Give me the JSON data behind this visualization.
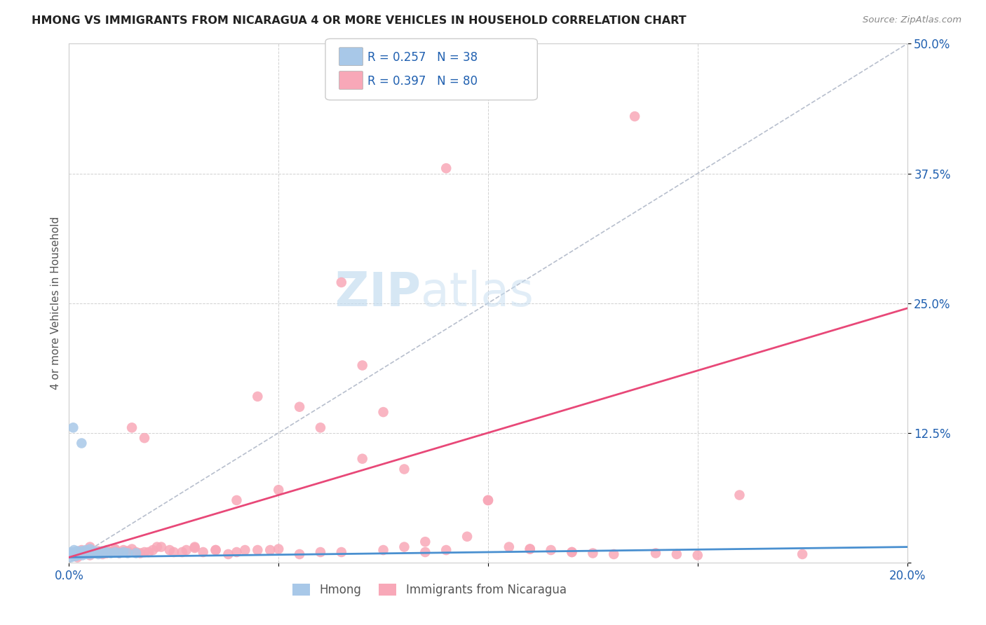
{
  "title": "HMONG VS IMMIGRANTS FROM NICARAGUA 4 OR MORE VEHICLES IN HOUSEHOLD CORRELATION CHART",
  "source": "Source: ZipAtlas.com",
  "ylabel": "4 or more Vehicles in Household",
  "xlim": [
    0.0,
    0.2
  ],
  "ylim": [
    0.0,
    0.5
  ],
  "xticks": [
    0.0,
    0.05,
    0.1,
    0.15,
    0.2
  ],
  "xticklabels": [
    "0.0%",
    "",
    "",
    "",
    "20.0%"
  ],
  "yticks": [
    0.0,
    0.125,
    0.25,
    0.375,
    0.5
  ],
  "yticklabels": [
    "",
    "12.5%",
    "25.0%",
    "37.5%",
    "50.0%"
  ],
  "hmong_R": 0.257,
  "hmong_N": 38,
  "nicaragua_R": 0.397,
  "nicaragua_N": 80,
  "hmong_color": "#a8c8e8",
  "nicaragua_color": "#f8a8b8",
  "hmong_line_color": "#4a90d0",
  "nicaragua_line_color": "#e84878",
  "diagonal_color": "#b0b8c8",
  "legend_text_color": "#2060b0",
  "background_color": "#ffffff",
  "watermark_zip": "ZIP",
  "watermark_atlas": "atlas",
  "hmong_x": [
    0.0005,
    0.0005,
    0.0008,
    0.001,
    0.001,
    0.0012,
    0.0012,
    0.0015,
    0.0015,
    0.0018,
    0.002,
    0.002,
    0.0022,
    0.0025,
    0.003,
    0.003,
    0.003,
    0.0032,
    0.0035,
    0.004,
    0.004,
    0.0042,
    0.005,
    0.005,
    0.005,
    0.006,
    0.006,
    0.007,
    0.007,
    0.008,
    0.008,
    0.009,
    0.01,
    0.011,
    0.012,
    0.013,
    0.014,
    0.016
  ],
  "hmong_y": [
    0.005,
    0.01,
    0.007,
    0.009,
    0.13,
    0.008,
    0.012,
    0.006,
    0.01,
    0.008,
    0.007,
    0.011,
    0.009,
    0.008,
    0.009,
    0.011,
    0.115,
    0.007,
    0.01,
    0.008,
    0.012,
    0.009,
    0.008,
    0.01,
    0.013,
    0.009,
    0.011,
    0.008,
    0.01,
    0.009,
    0.011,
    0.01,
    0.009,
    0.01,
    0.009,
    0.01,
    0.009,
    0.009
  ],
  "nicaragua_x": [
    0.002,
    0.003,
    0.004,
    0.005,
    0.006,
    0.007,
    0.008,
    0.009,
    0.01,
    0.011,
    0.012,
    0.013,
    0.014,
    0.015,
    0.016,
    0.017,
    0.018,
    0.019,
    0.02,
    0.022,
    0.025,
    0.028,
    0.03,
    0.032,
    0.035,
    0.038,
    0.04,
    0.042,
    0.045,
    0.048,
    0.05,
    0.055,
    0.06,
    0.065,
    0.07,
    0.075,
    0.08,
    0.085,
    0.09,
    0.095,
    0.1,
    0.105,
    0.11,
    0.115,
    0.12,
    0.125,
    0.13,
    0.135,
    0.14,
    0.145,
    0.15,
    0.003,
    0.005,
    0.007,
    0.009,
    0.011,
    0.013,
    0.015,
    0.018,
    0.021,
    0.024,
    0.027,
    0.03,
    0.035,
    0.04,
    0.045,
    0.05,
    0.06,
    0.07,
    0.08,
    0.09,
    0.1,
    0.055,
    0.065,
    0.075,
    0.085,
    0.11,
    0.12,
    0.16,
    0.175
  ],
  "nicaragua_y": [
    0.005,
    0.008,
    0.01,
    0.007,
    0.009,
    0.011,
    0.008,
    0.012,
    0.01,
    0.013,
    0.009,
    0.012,
    0.011,
    0.13,
    0.01,
    0.009,
    0.12,
    0.01,
    0.012,
    0.015,
    0.01,
    0.012,
    0.015,
    0.01,
    0.012,
    0.008,
    0.01,
    0.012,
    0.16,
    0.012,
    0.013,
    0.15,
    0.13,
    0.27,
    0.19,
    0.145,
    0.09,
    0.02,
    0.38,
    0.025,
    0.06,
    0.015,
    0.013,
    0.012,
    0.01,
    0.009,
    0.008,
    0.43,
    0.009,
    0.008,
    0.007,
    0.012,
    0.015,
    0.01,
    0.009,
    0.012,
    0.01,
    0.013,
    0.01,
    0.015,
    0.012,
    0.01,
    0.014,
    0.012,
    0.06,
    0.012,
    0.07,
    0.01,
    0.1,
    0.015,
    0.012,
    0.06,
    0.008,
    0.01,
    0.012,
    0.01,
    0.013,
    0.01,
    0.065,
    0.008
  ]
}
